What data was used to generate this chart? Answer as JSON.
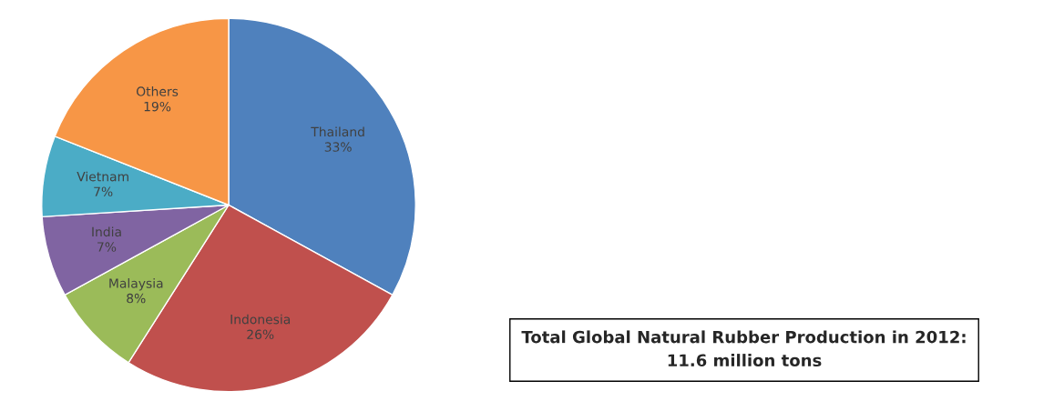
{
  "chart_data": {
    "type": "pie",
    "categories": [
      "Thailand",
      "Indonesia",
      "Malaysia",
      "India",
      "Vietnam",
      "Others"
    ],
    "values": [
      33,
      26,
      8,
      7,
      7,
      19
    ],
    "value_labels": [
      "33%",
      "26%",
      "8%",
      "7%",
      "7%",
      "19%"
    ],
    "colors": [
      "#4f81bd",
      "#c0504d",
      "#9bbb59",
      "#8064a2",
      "#4bacc6",
      "#f79646"
    ],
    "annotations": [
      "Total Global Natural Rubber Production in 2012:\n11.6 million tons"
    ]
  }
}
